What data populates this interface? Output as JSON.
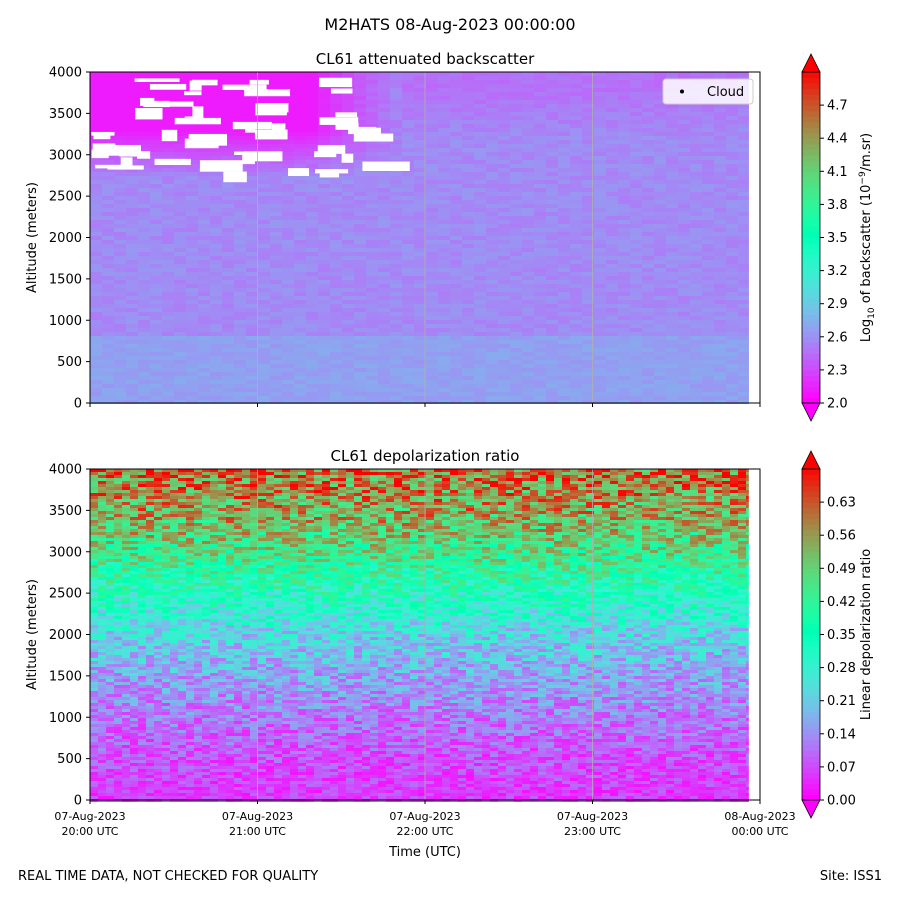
{
  "figure": {
    "suptitle": "M2HATS 08-Aug-2023 00:00:00",
    "footer_left": "REAL TIME DATA, NOT CHECKED FOR QUALITY",
    "footer_right": "Site: ISS1"
  },
  "chart_data": [
    {
      "type": "heatmap",
      "title": "CL61 attenuated backscatter",
      "ylabel": "Altitude (meters)",
      "xlabel": "",
      "x_ticks": [
        "07-Aug-2023\n20:00 UTC",
        "07-Aug-2023\n21:00 UTC",
        "07-Aug-2023\n22:00 UTC",
        "07-Aug-2023\n23:00 UTC",
        "08-Aug-2023\n00:00 UTC"
      ],
      "x_tick_labels_shown": false,
      "xlim": [
        "07-Aug-2023 20:00 UTC",
        "08-Aug-2023 00:00 UTC"
      ],
      "data_end": "07-Aug-2023 23:56 UTC",
      "ylim": [
        0,
        4000
      ],
      "y_ticks": [
        0,
        500,
        1000,
        1500,
        2000,
        2500,
        3000,
        3500,
        4000
      ],
      "grid": "vertical lines at hour ticks",
      "colormap": "rainbow",
      "colorbar": {
        "label": "Log10 of backscatter (10^-9/m.sr)",
        "label_parts": {
          "base": "Log",
          "sub": "10",
          "mid": " of backscatter (10",
          "sup": "−9",
          "end": "/m.sr)"
        },
        "range": [
          2.0,
          5.0
        ],
        "ticks": [
          "2.0",
          "2.3",
          "2.6",
          "2.9",
          "3.2",
          "3.5",
          "3.8",
          "4.1",
          "4.4",
          "4.7"
        ],
        "extend": "both"
      },
      "legend": {
        "entries": [
          "Cloud"
        ],
        "placement": "top-right",
        "marker": "black dot"
      },
      "field": {
        "dominant_value": 2.55,
        "upper_layer": {
          "altitude_range": [
            2700,
            4000
          ],
          "value": 2.1,
          "time_range": [
            "20:00",
            "21:50"
          ]
        },
        "no_data_gaps": "white patches above ~2700 m before 21:50 UTC",
        "lower_layer": {
          "altitude_range": [
            0,
            800
          ],
          "value": 2.65
        }
      }
    },
    {
      "type": "heatmap",
      "title": "CL61 depolarization ratio",
      "ylabel": "Altitude (meters)",
      "xlabel": "Time (UTC)",
      "x_ticks": [
        "07-Aug-2023\n20:00 UTC",
        "07-Aug-2023\n21:00 UTC",
        "07-Aug-2023\n22:00 UTC",
        "07-Aug-2023\n23:00 UTC",
        "08-Aug-2023\n00:00 UTC"
      ],
      "xlim": [
        "07-Aug-2023 20:00 UTC",
        "08-Aug-2023 00:00 UTC"
      ],
      "data_end": "07-Aug-2023 23:56 UTC",
      "ylim": [
        0,
        4000
      ],
      "y_ticks": [
        0,
        500,
        1000,
        1500,
        2000,
        2500,
        3000,
        3500,
        4000
      ],
      "grid": "vertical lines at hour ticks",
      "colormap": "rainbow",
      "colorbar": {
        "label": "Linear depolarization ratio",
        "range": [
          0.0,
          0.7
        ],
        "ticks": [
          "0.00",
          "0.07",
          "0.14",
          "0.21",
          "0.28",
          "0.35",
          "0.42",
          "0.49",
          "0.56",
          "0.63"
        ],
        "extend": "both"
      },
      "field": {
        "profile_altitude": [
          0,
          500,
          1000,
          1500,
          2000,
          2500,
          3000,
          3500,
          4000
        ],
        "profile_value": [
          0.05,
          0.07,
          0.11,
          0.16,
          0.22,
          0.33,
          0.45,
          0.55,
          0.6
        ]
      }
    }
  ]
}
